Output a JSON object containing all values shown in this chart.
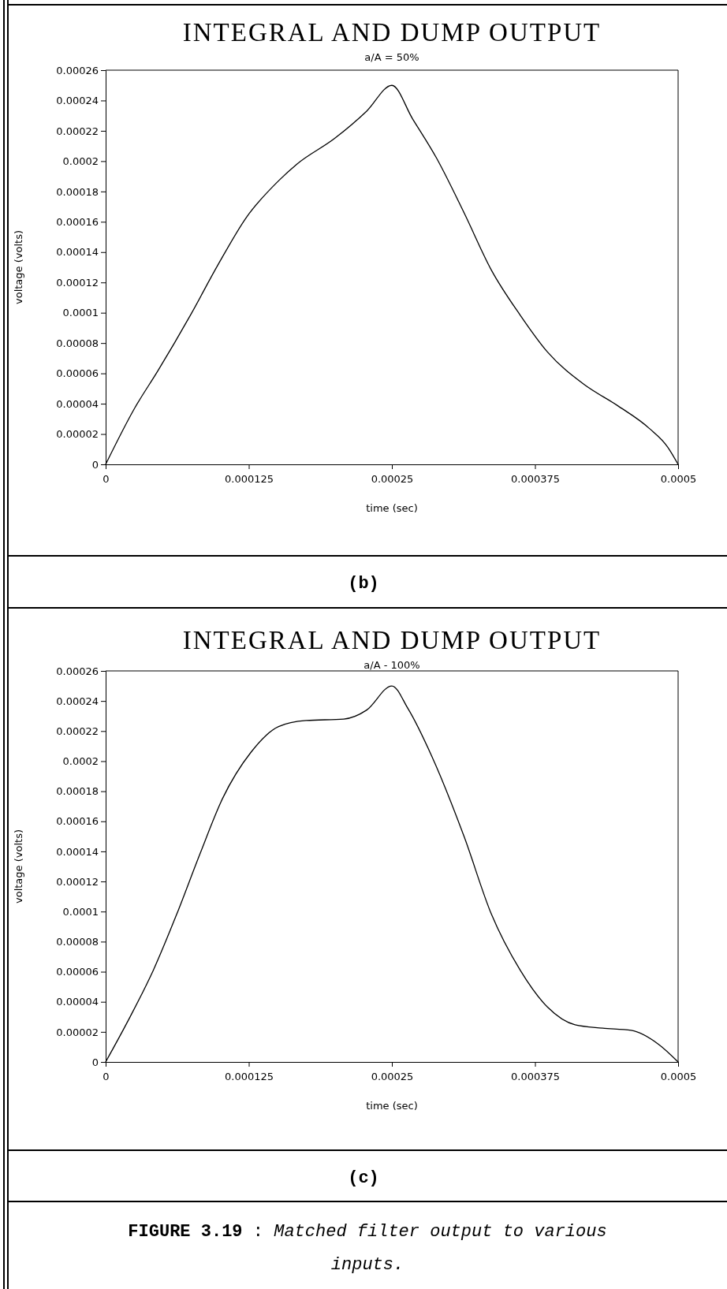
{
  "chart_data": [
    {
      "type": "line",
      "title": "INTEGRAL AND DUMP OUTPUT",
      "subtitle": "a/A = 50%",
      "xlabel": "time (sec)",
      "ylabel": "voltage (volts)",
      "x": [
        0,
        2.55e-05,
        4.57e-05,
        7.41e-05,
        9.84e-05,
        0.000123,
        0.000151,
        0.000167,
        0.0002,
        0.000228,
        0.00025,
        0.000268,
        0.000289,
        0.000313,
        0.000337,
        0.000362,
        0.000386,
        0.000418,
        0.000447,
        0.000475,
        0.000491,
        0.0005
      ],
      "series": [
        {
          "color": "#000000",
          "values": [
            0,
            3.73e-05,
            6.18e-05,
            9.85e-05,
            0.000132,
            0.000163,
            0.000187,
            0.000198,
            0.000215,
            0.000233,
            0.00025,
            0.000228,
            0.000202,
            0.000166,
            0.000128,
            9.85e-05,
            7.4e-05,
            5.26e-05,
            3.88e-05,
            2.36e-05,
            1.13e-05,
            0
          ]
        }
      ],
      "xlim": [
        0,
        0.0005
      ],
      "xticks": [
        0,
        0.000125,
        0.00025,
        0.000375,
        0.0005
      ],
      "ylim": [
        0,
        0.00026
      ],
      "yticks": [
        0,
        {
          "value": 2e-05,
          "label": "0.00002"
        },
        {
          "value": 4e-05,
          "label": "0.00004"
        },
        {
          "value": 6e-05,
          "label": "0.00006"
        },
        {
          "value": 8e-05,
          "label": "0.00008"
        },
        0.0001,
        0.00012,
        0.00014,
        0.00016,
        0.00018,
        0.0002,
        0.00022,
        0.00024,
        0.00026
      ],
      "marker": "none",
      "line_style": "solid",
      "annotations": [
        "(b)"
      ]
    },
    {
      "type": "line",
      "title": "INTEGRAL AND DUMP OUTPUT",
      "subtitle": "a/A - 100%",
      "xlabel": "time (sec)",
      "ylabel": "voltage (volts)",
      "x": [
        0,
        2.15e-05,
        4.17e-05,
        6.2e-05,
        8.22e-05,
        0.000102,
        0.000127,
        0.000151,
        0.000175,
        0.000208,
        0.000228,
        0.00025,
        0.000264,
        0.000285,
        0.000313,
        0.000337,
        0.000362,
        0.000386,
        0.00041,
        0.000434,
        0.000459,
        0.000483,
        0.0005
      ],
      "series": [
        {
          "color": "#000000",
          "values": [
            0,
            3.02e-05,
            6.11e-05,
            9.81e-05,
            0.000138,
            0.000175,
            0.000206,
            0.000223,
            0.000227,
            0.000228,
            0.000234,
            0.00025,
            0.000235,
            0.000203,
            0.00015,
            9.81e-05,
            6.11e-05,
            3.64e-05,
            2.47e-05,
            2.25e-05,
            2.1e-05,
            1.17e-05,
            0
          ]
        }
      ],
      "xlim": [
        0,
        0.0005
      ],
      "xticks": [
        0,
        0.000125,
        0.00025,
        0.000375,
        0.0005
      ],
      "ylim": [
        0,
        0.00026
      ],
      "yticks": [
        0,
        {
          "value": 2e-05,
          "label": "0.00002"
        },
        {
          "value": 4e-05,
          "label": "0.00004"
        },
        {
          "value": 6e-05,
          "label": "0.00006"
        },
        {
          "value": 8e-05,
          "label": "0.00008"
        },
        0.0001,
        0.00012,
        0.00014,
        0.00016,
        0.00018,
        0.0002,
        0.00022,
        0.00024,
        0.00026
      ],
      "marker": "none",
      "line_style": "solid",
      "annotations": [
        "(c)",
        "FIGURE 3.19 : Matched filter output to various inputs."
      ]
    }
  ]
}
